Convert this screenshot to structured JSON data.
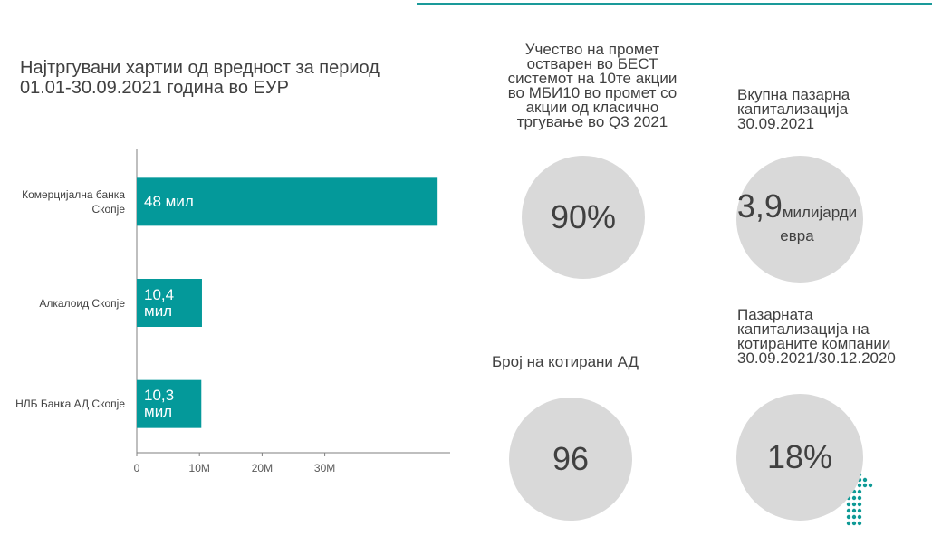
{
  "title": [
    "Најтргувани хартии од вредност за  период",
    "01.01-30.09.2021 година во ЕУР"
  ],
  "chart_data": {
    "type": "bar",
    "orientation": "horizontal",
    "categories": [
      "Комерцијална банка Скопје",
      "Алкалоид Скопје",
      "НЛБ Банка АД Скопје"
    ],
    "values": [
      48000000,
      10400000,
      10300000
    ],
    "value_labels": [
      "48 мил",
      "10,4 мил",
      "10,3 мил"
    ],
    "color": "#04999a",
    "xlim": [
      0,
      50000000
    ],
    "xticks": [
      0,
      {
        "value": 10000000,
        "label": "10M"
      },
      {
        "value": 20000000,
        "label": "20M"
      },
      {
        "value": 30000000,
        "label": "30M"
      }
    ]
  },
  "stats": [
    {
      "label": [
        "Учество на промет",
        "остварен во БЕСТ",
        "системот на 10те акции",
        "во МБИ10 во промет со",
        "акции од класично",
        "тргување во Q3 2021"
      ],
      "value": "90%"
    },
    {
      "label": [
        "Вкупна пазарна",
        "капитализација",
        "30.09.2021"
      ],
      "value": "3,9",
      "unit": [
        "милијарди",
        "евра"
      ]
    },
    {
      "label": [
        "Број на котирани АД"
      ],
      "value": "96"
    },
    {
      "label": [
        "Пазарната",
        "капитализација на",
        "котираните компании",
        "30.09.2021/30.12.2020"
      ],
      "value": "18%"
    }
  ]
}
